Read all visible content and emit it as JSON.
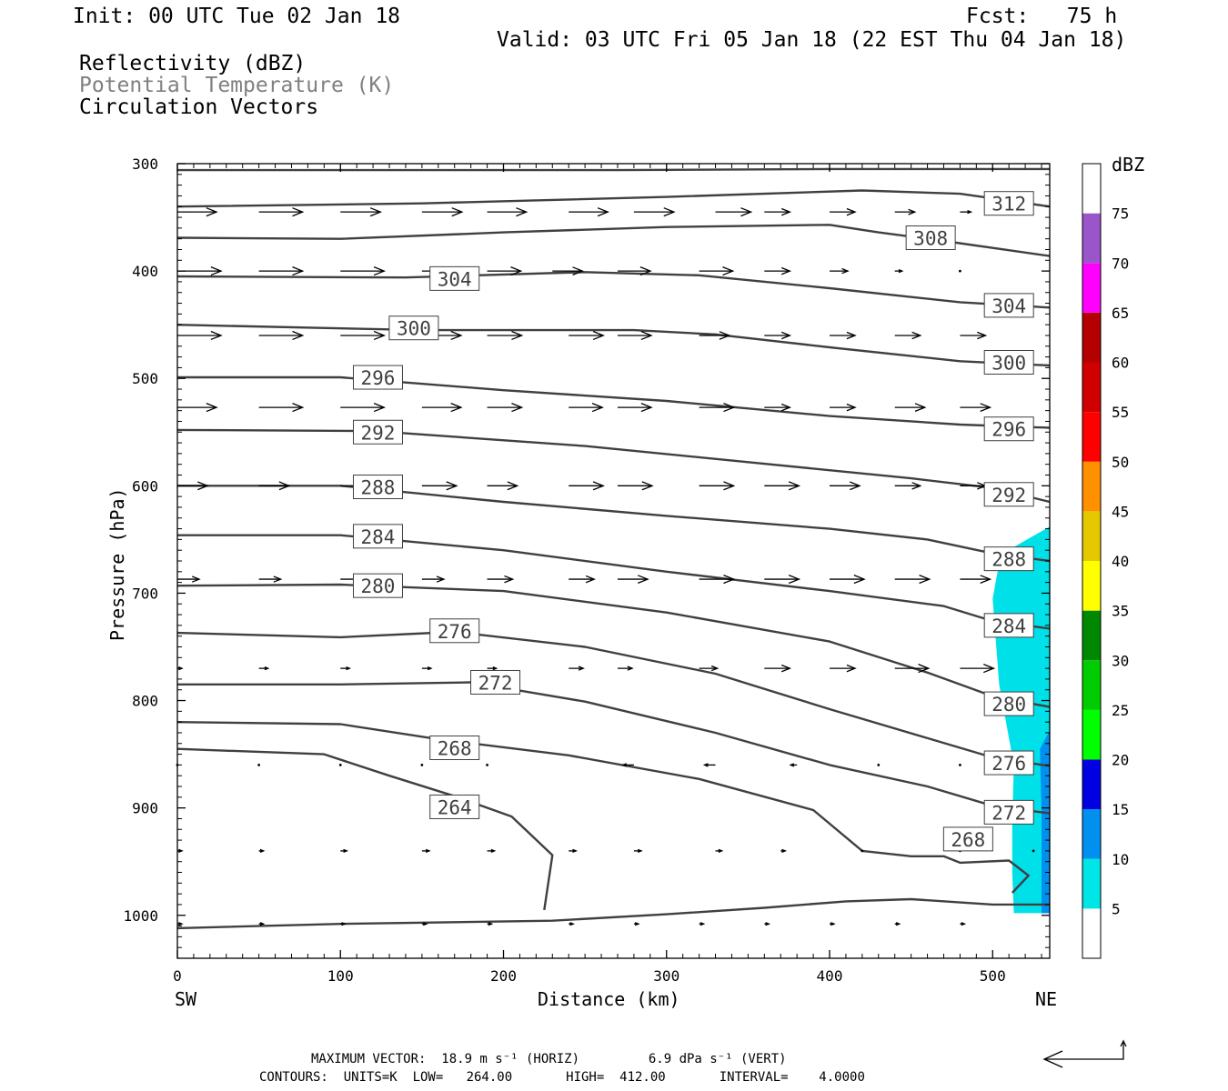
{
  "header": {
    "init": "Init: 00 UTC Tue 02 Jan 18",
    "fcst": "Fcst:   75 h",
    "valid": "Valid: 03 UTC Fri 05 Jan 18 (22 EST Thu 04 Jan 18)",
    "field1": "Reflectivity (dBZ)",
    "field2": "Potential Temperature (K)",
    "field3": "Circulation Vectors"
  },
  "footer": {
    "max_vector": "MAXIMUM VECTOR:  18.9 m s⁻¹ (HORIZ)         6.9 dPa s⁻¹ (VERT)",
    "contours": "CONTOURS:  UNITS=K  LOW=   264.00       HIGH=  412.00       INTERVAL=    4.0000"
  },
  "chart_data": {
    "type": "line",
    "title": "",
    "xlabel": "Distance (km)",
    "ylabel": "Pressure (hPa)",
    "x_end_labels": [
      "SW",
      "NE"
    ],
    "xlim": [
      0,
      535
    ],
    "ylim": [
      1040,
      300
    ],
    "x_ticks": [
      0,
      100,
      200,
      300,
      400,
      500
    ],
    "y_ticks": [
      300,
      400,
      500,
      600,
      700,
      800,
      900,
      1000
    ],
    "contour_color": "#404040",
    "contour_labels": [
      {
        "text": "312",
        "x": 510,
        "p": 337
      },
      {
        "text": "308",
        "x": 462,
        "p": 369
      },
      {
        "text": "304",
        "x": 170,
        "p": 407
      },
      {
        "text": "304",
        "x": 510,
        "p": 432
      },
      {
        "text": "300",
        "x": 145,
        "p": 453
      },
      {
        "text": "300",
        "x": 510,
        "p": 485
      },
      {
        "text": "296",
        "x": 123,
        "p": 499
      },
      {
        "text": "296",
        "x": 510,
        "p": 547
      },
      {
        "text": "292",
        "x": 123,
        "p": 550
      },
      {
        "text": "292",
        "x": 510,
        "p": 608
      },
      {
        "text": "288",
        "x": 123,
        "p": 601
      },
      {
        "text": "288",
        "x": 510,
        "p": 668
      },
      {
        "text": "284",
        "x": 123,
        "p": 647
      },
      {
        "text": "284",
        "x": 510,
        "p": 730
      },
      {
        "text": "280",
        "x": 123,
        "p": 693
      },
      {
        "text": "280",
        "x": 510,
        "p": 803
      },
      {
        "text": "276",
        "x": 170,
        "p": 735
      },
      {
        "text": "276",
        "x": 510,
        "p": 858
      },
      {
        "text": "272",
        "x": 195,
        "p": 783
      },
      {
        "text": "272",
        "x": 510,
        "p": 904
      },
      {
        "text": "268",
        "x": 170,
        "p": 844
      },
      {
        "text": "268",
        "x": 485,
        "p": 929
      },
      {
        "text": "264",
        "x": 170,
        "p": 899
      }
    ],
    "contours": [
      {
        "level": 316,
        "points": [
          [
            0,
            306
          ],
          [
            270,
            306
          ],
          [
            400,
            305
          ],
          [
            535,
            305
          ]
        ]
      },
      {
        "level": 312,
        "points": [
          [
            0,
            340
          ],
          [
            150,
            337
          ],
          [
            300,
            331
          ],
          [
            420,
            325
          ],
          [
            480,
            328
          ],
          [
            535,
            340
          ]
        ]
      },
      {
        "level": 308,
        "points": [
          [
            0,
            369
          ],
          [
            100,
            370
          ],
          [
            200,
            364
          ],
          [
            300,
            359
          ],
          [
            400,
            357
          ],
          [
            430,
            364
          ],
          [
            470,
            372
          ],
          [
            535,
            386
          ]
        ]
      },
      {
        "level": 304,
        "points": [
          [
            0,
            405
          ],
          [
            140,
            406
          ],
          [
            250,
            401
          ],
          [
            320,
            404
          ],
          [
            400,
            416
          ],
          [
            480,
            429
          ],
          [
            535,
            434
          ]
        ]
      },
      {
        "level": 300,
        "points": [
          [
            0,
            450
          ],
          [
            150,
            455
          ],
          [
            280,
            455
          ],
          [
            330,
            459
          ],
          [
            400,
            471
          ],
          [
            480,
            484
          ],
          [
            535,
            488
          ]
        ]
      },
      {
        "level": 296,
        "points": [
          [
            0,
            499
          ],
          [
            100,
            499
          ],
          [
            200,
            511
          ],
          [
            300,
            521
          ],
          [
            400,
            535
          ],
          [
            480,
            543
          ],
          [
            535,
            546
          ]
        ]
      },
      {
        "level": 292,
        "points": [
          [
            0,
            548
          ],
          [
            120,
            549
          ],
          [
            250,
            563
          ],
          [
            350,
            578
          ],
          [
            450,
            593
          ],
          [
            500,
            602
          ],
          [
            535,
            615
          ]
        ]
      },
      {
        "level": 288,
        "points": [
          [
            0,
            600
          ],
          [
            100,
            600
          ],
          [
            200,
            615
          ],
          [
            300,
            628
          ],
          [
            400,
            640
          ],
          [
            460,
            650
          ],
          [
            500,
            663
          ],
          [
            535,
            670
          ]
        ]
      },
      {
        "level": 284,
        "points": [
          [
            0,
            646
          ],
          [
            100,
            646
          ],
          [
            200,
            660
          ],
          [
            300,
            680
          ],
          [
            400,
            698
          ],
          [
            470,
            712
          ],
          [
            500,
            726
          ],
          [
            535,
            733
          ]
        ]
      },
      {
        "level": 280,
        "points": [
          [
            0,
            693
          ],
          [
            100,
            692
          ],
          [
            200,
            698
          ],
          [
            300,
            718
          ],
          [
            400,
            745
          ],
          [
            460,
            774
          ],
          [
            500,
            796
          ],
          [
            535,
            806
          ]
        ]
      },
      {
        "level": 276,
        "points": [
          [
            0,
            737
          ],
          [
            100,
            741
          ],
          [
            170,
            736
          ],
          [
            250,
            750
          ],
          [
            330,
            775
          ],
          [
            400,
            808
          ],
          [
            460,
            835
          ],
          [
            500,
            853
          ],
          [
            535,
            861
          ]
        ]
      },
      {
        "level": 272,
        "points": [
          [
            0,
            785
          ],
          [
            100,
            785
          ],
          [
            180,
            783
          ],
          [
            250,
            801
          ],
          [
            330,
            830
          ],
          [
            400,
            860
          ],
          [
            460,
            880
          ],
          [
            500,
            898
          ],
          [
            535,
            905
          ]
        ]
      },
      {
        "level": 268,
        "points": [
          [
            0,
            820
          ],
          [
            100,
            822
          ],
          [
            160,
            836
          ],
          [
            240,
            851
          ],
          [
            320,
            873
          ],
          [
            390,
            902
          ],
          [
            420,
            940
          ],
          [
            450,
            945
          ],
          [
            470,
            945
          ],
          [
            480,
            951
          ],
          [
            510,
            949
          ],
          [
            522,
            963
          ],
          [
            512,
            979
          ]
        ]
      },
      {
        "level": 264,
        "points": [
          [
            0,
            845
          ],
          [
            90,
            850
          ],
          [
            130,
            870
          ],
          [
            170,
            889
          ],
          [
            205,
            908
          ],
          [
            230,
            944
          ],
          [
            225,
            995
          ]
        ]
      },
      {
        "level": 260,
        "points": [
          [
            0,
            1012
          ],
          [
            100,
            1008
          ],
          [
            230,
            1005
          ],
          [
            300,
            999
          ],
          [
            360,
            993
          ],
          [
            410,
            987
          ],
          [
            450,
            985
          ],
          [
            500,
            990
          ],
          [
            535,
            990
          ]
        ]
      }
    ],
    "vectors": [
      {
        "p": 345,
        "x": [
          0,
          50,
          100,
          150,
          190,
          240,
          280,
          330,
          360,
          400,
          440,
          480,
          515
        ],
        "u": [
          43,
          48,
          44,
          44,
          43,
          43,
          44,
          39,
          28,
          28,
          22,
          12,
          8
        ],
        "v": [
          0,
          0,
          0,
          0,
          0,
          0,
          0,
          0,
          0,
          0,
          0,
          0,
          0
        ]
      },
      {
        "p": 400,
        "x": [
          0,
          50,
          100,
          150,
          190,
          230,
          270,
          320,
          360,
          400,
          440,
          480
        ],
        "u": [
          48,
          48,
          48,
          43,
          37,
          33,
          36,
          37,
          28,
          20,
          8,
          2
        ],
        "v": [
          0,
          0,
          0,
          0,
          0,
          0,
          0,
          0,
          0,
          0,
          0,
          0
        ]
      },
      {
        "p": 460,
        "x": [
          0,
          50,
          100,
          150,
          190,
          240,
          270,
          320,
          360,
          400,
          440,
          480
        ],
        "u": [
          48,
          48,
          48,
          43,
          38,
          38,
          37,
          33,
          28,
          28,
          28,
          28
        ],
        "v": [
          0,
          0,
          0,
          0,
          0,
          0,
          0,
          0,
          0,
          0,
          0,
          0
        ]
      },
      {
        "p": 527,
        "x": [
          0,
          50,
          100,
          150,
          190,
          240,
          270,
          320,
          360,
          400,
          440,
          480
        ],
        "u": [
          43,
          48,
          48,
          43,
          38,
          37,
          37,
          38,
          28,
          28,
          33,
          33
        ],
        "v": [
          0,
          0,
          0,
          0,
          0,
          0,
          0,
          0,
          0,
          0,
          0,
          0
        ]
      },
      {
        "p": 600,
        "x": [
          0,
          50,
          100,
          150,
          190,
          240,
          270,
          320,
          360,
          400,
          440,
          480
        ],
        "u": [
          33,
          33,
          38,
          38,
          33,
          38,
          38,
          38,
          38,
          33,
          28,
          28
        ],
        "v": [
          0,
          0,
          0,
          0,
          0,
          0,
          0,
          0,
          0,
          0,
          0,
          0
        ]
      },
      {
        "p": 687,
        "x": [
          0,
          50,
          100,
          150,
          190,
          240,
          270,
          320,
          360,
          400,
          440,
          480
        ],
        "u": [
          24,
          24,
          24,
          24,
          28,
          28,
          33,
          38,
          38,
          38,
          38,
          33
        ],
        "v": [
          0,
          0,
          0,
          0,
          0,
          0,
          0,
          0,
          0,
          0,
          0,
          0
        ]
      },
      {
        "p": 770,
        "x": [
          0,
          50,
          100,
          150,
          190,
          240,
          270,
          320,
          360,
          400,
          440,
          480
        ],
        "u": [
          5,
          10,
          10,
          10,
          10,
          16,
          16,
          20,
          28,
          28,
          37,
          37
        ],
        "v": [
          0,
          0,
          0,
          0,
          0,
          0,
          0,
          0,
          0,
          0,
          0,
          0
        ]
      },
      {
        "p": 860,
        "x": [
          0,
          50,
          100,
          150,
          190,
          280,
          330,
          380,
          430,
          480
        ],
        "u": [
          2,
          2,
          2,
          2,
          2,
          -12,
          -12,
          -7,
          -2,
          -2
        ],
        "v": [
          0,
          0,
          0,
          0,
          0,
          0,
          0,
          0,
          0,
          0
        ]
      },
      {
        "p": 940,
        "x": [
          0,
          50,
          100,
          150,
          190,
          240,
          280,
          330,
          370,
          420,
          480,
          525
        ],
        "u": [
          5,
          5,
          7,
          8,
          8,
          8,
          8,
          7,
          5,
          2,
          0,
          -2
        ],
        "v": [
          0,
          0,
          0,
          0,
          0,
          0,
          0,
          0,
          0,
          0,
          0,
          0
        ]
      },
      {
        "p": 1008,
        "x": [
          0,
          50,
          100,
          150,
          190,
          240,
          280,
          320,
          360,
          400,
          440,
          480
        ],
        "u": [
          5,
          5,
          5,
          5,
          5,
          5,
          5,
          5,
          5,
          5,
          5,
          5
        ],
        "v": [
          0,
          0,
          0,
          0,
          0,
          0,
          0,
          0,
          0,
          0,
          0,
          0
        ]
      }
    ],
    "reflectivity_regions": [
      {
        "dbz": "5-10",
        "color": "#00e0e8",
        "points": [
          [
            535,
            638
          ],
          [
            505,
            664
          ],
          [
            500,
            705
          ],
          [
            504,
            785
          ],
          [
            513,
            860
          ],
          [
            512,
            915
          ],
          [
            512,
            960
          ],
          [
            513,
            998
          ],
          [
            535,
            998
          ]
        ]
      },
      {
        "dbz": "10-15",
        "color": "#0090f0",
        "points": [
          [
            535,
            828
          ],
          [
            529,
            845
          ],
          [
            530,
            905
          ],
          [
            530,
            998
          ],
          [
            535,
            998
          ]
        ]
      }
    ],
    "colorbar": {
      "title": "dBZ",
      "labels": [
        "5",
        "10",
        "15",
        "20",
        "25",
        "30",
        "35",
        "40",
        "45",
        "50",
        "55",
        "60",
        "65",
        "70",
        "75"
      ],
      "colors": [
        "#00e6e6",
        "#0090f0",
        "#0000e0",
        "#00ff00",
        "#00cc00",
        "#008800",
        "#ffff00",
        "#e6c800",
        "#ff9000",
        "#ff0000",
        "#d00000",
        "#b40000",
        "#ff00ff",
        "#9955c9",
        "#ffffff"
      ],
      "bottom_color": "#ffffff"
    },
    "reference_vector": {
      "label": ""
    }
  }
}
